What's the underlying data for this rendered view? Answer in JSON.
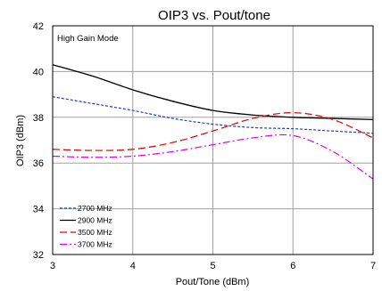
{
  "chart_data": {
    "type": "line",
    "title": "OIP3 vs. Pout/tone",
    "xlabel": "Pout/Tone (dBm)",
    "ylabel": "OIP3 (dBm)",
    "xlim": [
      3,
      7
    ],
    "ylim": [
      32,
      42
    ],
    "xticks": [
      3,
      4,
      5,
      6,
      7
    ],
    "yticks": [
      32,
      34,
      36,
      38,
      40,
      42
    ],
    "grid": true,
    "annotation": "High Gain Mode",
    "legend_position": "bottom-left",
    "series": [
      {
        "name": "2700 MHz",
        "color": "#1f3fbf",
        "dash": "dashed",
        "x": [
          3.0,
          3.5,
          4.0,
          4.5,
          5.0,
          5.5,
          6.0,
          6.5,
          7.0
        ],
        "y": [
          38.9,
          38.6,
          38.3,
          37.95,
          37.7,
          37.55,
          37.5,
          37.4,
          37.3
        ]
      },
      {
        "name": "2900 MHz",
        "color": "#000000",
        "dash": "solid",
        "x": [
          3.0,
          3.5,
          4.0,
          4.5,
          5.0,
          5.5,
          6.0,
          6.5,
          7.0
        ],
        "y": [
          40.3,
          39.8,
          39.2,
          38.7,
          38.3,
          38.1,
          38.0,
          37.95,
          37.9
        ]
      },
      {
        "name": "3500 MHz",
        "color": "#e00000",
        "dash": "longdash",
        "x": [
          3.0,
          3.5,
          4.0,
          4.5,
          5.0,
          5.5,
          6.0,
          6.5,
          7.0
        ],
        "y": [
          36.6,
          36.55,
          36.6,
          36.9,
          37.4,
          37.95,
          38.2,
          37.9,
          37.1
        ]
      },
      {
        "name": "3700 MHz",
        "color": "#e000e0",
        "dash": "dashdot",
        "x": [
          3.0,
          3.5,
          4.0,
          4.5,
          5.0,
          5.5,
          6.0,
          6.5,
          7.0
        ],
        "y": [
          36.3,
          36.25,
          36.3,
          36.5,
          36.8,
          37.1,
          37.2,
          36.5,
          35.3
        ]
      }
    ]
  }
}
